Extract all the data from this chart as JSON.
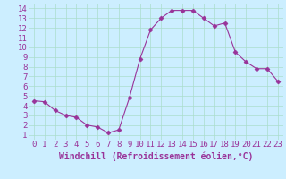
{
  "x": [
    0,
    1,
    2,
    3,
    4,
    5,
    6,
    7,
    8,
    9,
    10,
    11,
    12,
    13,
    14,
    15,
    16,
    17,
    18,
    19,
    20,
    21,
    22,
    23
  ],
  "y": [
    4.5,
    4.4,
    3.5,
    3.0,
    2.8,
    2.0,
    1.8,
    1.2,
    1.5,
    4.8,
    8.8,
    11.8,
    13.0,
    13.8,
    13.8,
    13.8,
    13.0,
    12.2,
    12.5,
    9.5,
    8.5,
    7.8,
    7.8,
    6.5
  ],
  "line_color": "#993399",
  "marker": "D",
  "marker_size": 2.5,
  "bg_color": "#cceeff",
  "grid_color": "#aaddcc",
  "xlabel": "Windchill (Refroidissement éolien,°C)",
  "xlabel_color": "#993399",
  "tick_color": "#993399",
  "xlim": [
    -0.5,
    23.5
  ],
  "ylim": [
    0.5,
    14.5
  ],
  "xticks": [
    0,
    1,
    2,
    3,
    4,
    5,
    6,
    7,
    8,
    9,
    10,
    11,
    12,
    13,
    14,
    15,
    16,
    17,
    18,
    19,
    20,
    21,
    22,
    23
  ],
  "yticks": [
    1,
    2,
    3,
    4,
    5,
    6,
    7,
    8,
    9,
    10,
    11,
    12,
    13,
    14
  ],
  "xlabel_fontsize": 7,
  "tick_fontsize": 6.5
}
